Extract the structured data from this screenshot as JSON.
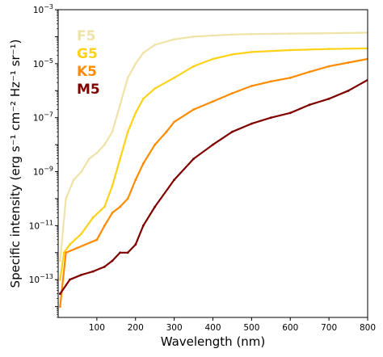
{
  "chart_data": {
    "type": "line",
    "xlabel": "Wavelength (nm)",
    "ylabel": "Specific intensity (erg s⁻¹ cm⁻² Hz⁻¹ sr⁻¹)",
    "y_scale": "log",
    "xlim": [
      0,
      800
    ],
    "ylim_exponents": [
      -14.4,
      -3
    ],
    "grid": false,
    "legend_placement": "top-left",
    "x_ticks": [
      "100",
      "200",
      "300",
      "400",
      "500",
      "600",
      "700",
      "800"
    ],
    "y_ticks": [
      {
        "base": "10",
        "exp": "−13"
      },
      {
        "base": "10",
        "exp": "−11"
      },
      {
        "base": "10",
        "exp": "−9"
      },
      {
        "base": "10",
        "exp": "−7"
      },
      {
        "base": "10",
        "exp": "−5"
      },
      {
        "base": "10",
        "exp": "−3"
      }
    ],
    "series": [
      {
        "name": "F5",
        "color": "#efe3a8",
        "x": [
          5,
          20,
          40,
          60,
          80,
          100,
          120,
          140,
          160,
          180,
          200,
          220,
          250,
          300,
          350,
          400,
          450,
          500,
          600,
          700,
          800
        ],
        "y": [
          5e-13,
          1e-10,
          5e-10,
          1e-09,
          3e-09,
          5e-09,
          1e-08,
          3e-08,
          3e-07,
          3e-06,
          1e-05,
          2.5e-05,
          5e-05,
          8e-05,
          0.0001,
          0.00011,
          0.00012,
          0.000125,
          0.00013,
          0.000135,
          0.00014
        ]
      },
      {
        "name": "G5",
        "color": "#ffd21a",
        "x": [
          5,
          15,
          30,
          60,
          90,
          120,
          140,
          160,
          180,
          200,
          220,
          250,
          300,
          350,
          400,
          450,
          500,
          600,
          700,
          800
        ],
        "y": [
          1e-13,
          1e-12,
          2e-12,
          5e-12,
          2e-11,
          5e-11,
          3e-10,
          3e-09,
          3e-08,
          1.5e-07,
          5e-07,
          1.2e-06,
          3e-06,
          8e-06,
          1.5e-05,
          2.2e-05,
          2.7e-05,
          3.2e-05,
          3.5e-05,
          3.7e-05
        ]
      },
      {
        "name": "K5",
        "color": "#ff8c00",
        "x": [
          5,
          20,
          50,
          100,
          120,
          140,
          160,
          180,
          200,
          220,
          250,
          280,
          300,
          350,
          400,
          450,
          500,
          550,
          600,
          650,
          700,
          750,
          800
        ],
        "y": [
          1e-14,
          1e-12,
          1.5e-12,
          3e-12,
          1e-11,
          3e-11,
          5e-11,
          1e-10,
          5e-10,
          2e-09,
          1e-08,
          3e-08,
          7e-08,
          2e-07,
          4e-07,
          8e-07,
          1.5e-06,
          2.2e-06,
          3e-06,
          5e-06,
          8e-06,
          1.1e-05,
          1.5e-05
        ]
      },
      {
        "name": "M5",
        "color": "#800000",
        "x": [
          5,
          30,
          60,
          90,
          120,
          140,
          160,
          180,
          200,
          220,
          250,
          300,
          350,
          400,
          450,
          500,
          550,
          600,
          650,
          700,
          750,
          800
        ],
        "y": [
          3e-14,
          1e-13,
          1.5e-13,
          2e-13,
          3e-13,
          5e-13,
          1e-12,
          1e-12,
          2e-12,
          1e-11,
          5e-11,
          5e-10,
          3e-09,
          1e-08,
          3e-08,
          6e-08,
          1e-07,
          1.5e-07,
          3e-07,
          5e-07,
          1e-06,
          2.5e-06
        ]
      }
    ]
  }
}
